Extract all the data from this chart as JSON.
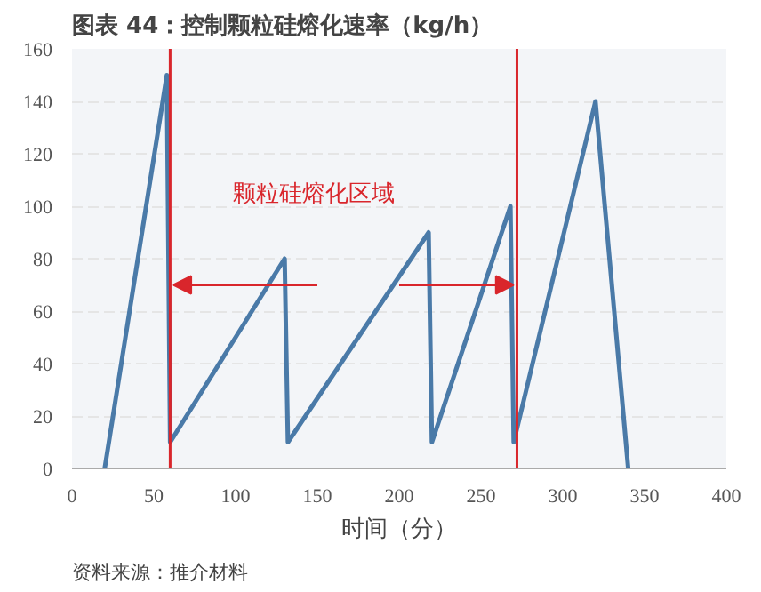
{
  "chart_data": {
    "type": "line",
    "title": "图表 44：控制颗粒硅熔化速率（kg/h）",
    "xlabel": "时间（分）",
    "x": [
      20,
      58,
      60,
      130,
      132,
      218,
      220,
      268,
      270,
      320,
      340
    ],
    "series": [
      {
        "color": "#4a7aa8",
        "values": [
          0,
          150,
          10,
          80,
          10,
          90,
          10,
          100,
          10,
          140,
          0
        ]
      }
    ],
    "xlim": [
      0,
      400
    ],
    "xticks": [
      0,
      50,
      100,
      150,
      200,
      250,
      300,
      350,
      400
    ],
    "ylim": [
      0,
      160
    ],
    "yticks": [
      0,
      20,
      40,
      60,
      80,
      100,
      120,
      140,
      160
    ],
    "grid": "y",
    "marker": "none",
    "line_style": "solid",
    "ref_lines": [
      {
        "axis": "x",
        "value": 60,
        "color": "#d9262c"
      },
      {
        "axis": "x",
        "value": 272,
        "color": "#d9262c"
      }
    ],
    "annotations": [
      "颗粒硅熔化区域",
      "资料来源：推介材料"
    ]
  }
}
